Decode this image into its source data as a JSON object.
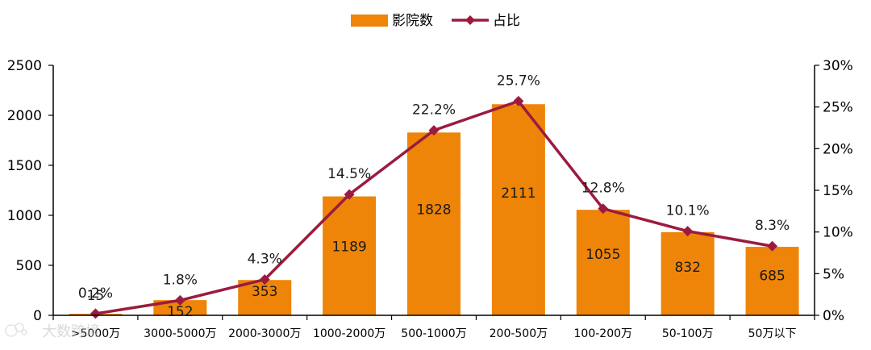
{
  "chart_data": {
    "type": "bar",
    "categories": [
      ">5000万",
      "3000-5000万",
      "2000-3000万",
      "1000-2000万",
      "500-1000万",
      "200-500万",
      "100-200万",
      "50-100万",
      "50万以下"
    ],
    "series": [
      {
        "name": "影院数",
        "type": "bar",
        "axis": "left",
        "values": [
          15,
          152,
          353,
          1189,
          1828,
          2111,
          1055,
          832,
          685
        ],
        "labels": [
          "15",
          "152",
          "353",
          "1189",
          "1828",
          "2111",
          "1055",
          "832",
          "685"
        ],
        "color": "#ee8408"
      },
      {
        "name": "占比",
        "type": "line",
        "axis": "right",
        "values": [
          0.2,
          1.8,
          4.3,
          14.5,
          22.2,
          25.7,
          12.8,
          10.1,
          8.3
        ],
        "labels": [
          "0.2%",
          "1.8%",
          "4.3%",
          "14.5%",
          "22.2%",
          "25.7%",
          "12.8%",
          "10.1%",
          "8.3%"
        ],
        "color": "#9b1b3f"
      }
    ],
    "y_left": {
      "min": 0,
      "max": 2500,
      "ticks": [
        "0",
        "500",
        "1000",
        "1500",
        "2000",
        "2500"
      ]
    },
    "y_right": {
      "min": 0,
      "max": 30,
      "ticks": [
        "0%",
        "5%",
        "10%",
        "15%",
        "20%",
        "25%",
        "30%"
      ]
    },
    "legend_position": "top-center",
    "grid": false
  },
  "watermark": "大数跨境"
}
